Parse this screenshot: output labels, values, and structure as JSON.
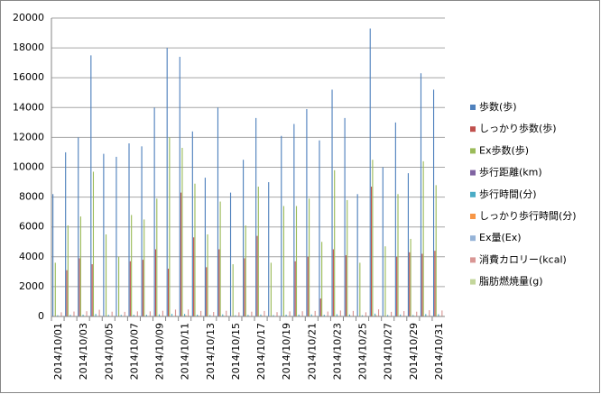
{
  "chart_data": {
    "type": "bar",
    "categories": [
      "2014/10/01",
      null,
      "2014/10/03",
      null,
      "2014/10/05",
      null,
      "2014/10/07",
      null,
      "2014/10/09",
      null,
      "2014/10/11",
      null,
      "2014/10/13",
      null,
      "2014/10/15",
      null,
      "2014/10/17",
      null,
      "2014/10/19",
      null,
      "2014/10/21",
      null,
      "2014/10/23",
      null,
      "2014/10/25",
      null,
      "2014/10/27",
      null,
      "2014/10/29",
      null,
      "2014/10/31"
    ],
    "series": [
      {
        "name": "歩数(歩)",
        "color": "#4f81bd",
        "values": [
          8200,
          11000,
          12000,
          17500,
          10900,
          10700,
          11600,
          11400,
          14000,
          18000,
          17400,
          12400,
          9300,
          14000,
          8300,
          10500,
          13300,
          9000,
          12100,
          12900,
          13900,
          11800,
          15200,
          13300,
          8200,
          19300,
          10000,
          13000,
          9600,
          16300,
          15200
        ]
      },
      {
        "name": "しっかり歩数(歩)",
        "color": "#c0504d",
        "values": [
          0,
          3100,
          3900,
          3500,
          0,
          0,
          3700,
          3800,
          4500,
          3200,
          8300,
          5300,
          3300,
          4500,
          0,
          3900,
          5400,
          0,
          0,
          3700,
          4000,
          1200,
          4500,
          4100,
          0,
          8700,
          0,
          4000,
          4300,
          4200,
          4400
        ]
      },
      {
        "name": "Ex歩数(歩)",
        "color": "#9bbb59",
        "values": [
          3600,
          6100,
          6700,
          9700,
          5500,
          4000,
          6800,
          6500,
          7900,
          12000,
          11300,
          8900,
          5500,
          7700,
          3500,
          6100,
          8700,
          3600,
          7400,
          7400,
          7900,
          5000,
          9800,
          7800,
          3600,
          10500,
          4700,
          8200,
          5200,
          10400,
          8800
        ]
      },
      {
        "name": "歩行距離(km)",
        "color": "#8064a2",
        "values": [
          6,
          8,
          9,
          13,
          8,
          8,
          9,
          8,
          10,
          13,
          13,
          9,
          7,
          10,
          6,
          8,
          10,
          7,
          9,
          9,
          10,
          9,
          11,
          10,
          6,
          14,
          7,
          9,
          7,
          12,
          11
        ]
      },
      {
        "name": "歩行時間(分)",
        "color": "#4bacc6",
        "values": [
          80,
          110,
          120,
          170,
          110,
          105,
          115,
          115,
          140,
          175,
          170,
          120,
          90,
          140,
          80,
          105,
          130,
          90,
          120,
          125,
          135,
          115,
          150,
          130,
          80,
          190,
          100,
          130,
          95,
          160,
          150
        ]
      },
      {
        "name": "しっかり歩行時間(分)",
        "color": "#f79646",
        "values": [
          0,
          30,
          35,
          30,
          0,
          0,
          35,
          35,
          40,
          30,
          75,
          50,
          30,
          40,
          0,
          35,
          50,
          0,
          0,
          35,
          35,
          10,
          40,
          40,
          0,
          80,
          0,
          35,
          40,
          40,
          40
        ]
      },
      {
        "name": "Ex量(Ex)",
        "color": "#95b3d7",
        "values": [
          1,
          2,
          2,
          3,
          1,
          1,
          2,
          2,
          2,
          3,
          4,
          3,
          2,
          2,
          1,
          2,
          3,
          1,
          2,
          2,
          2,
          1,
          3,
          2,
          1,
          4,
          1,
          2,
          2,
          3,
          3
        ]
      },
      {
        "name": "消費カロリー(kcal)",
        "color": "#d99694",
        "values": [
          280,
          330,
          350,
          450,
          320,
          310,
          340,
          340,
          380,
          460,
          470,
          370,
          300,
          380,
          280,
          320,
          370,
          290,
          340,
          350,
          370,
          330,
          400,
          370,
          280,
          480,
          310,
          360,
          320,
          420,
          400
        ]
      },
      {
        "name": "脂肪燃焼量(g)",
        "color": "#c3d69b",
        "values": [
          20,
          30,
          32,
          45,
          28,
          27,
          31,
          30,
          37,
          47,
          48,
          34,
          25,
          37,
          20,
          28,
          35,
          22,
          32,
          33,
          35,
          29,
          40,
          35,
          20,
          50,
          26,
          34,
          27,
          42,
          40
        ]
      }
    ],
    "ylim": [
      0,
      20000
    ],
    "yticks": [
      0,
      2000,
      4000,
      6000,
      8000,
      10000,
      12000,
      14000,
      16000,
      18000,
      20000
    ],
    "grid": true,
    "legend": "right"
  }
}
